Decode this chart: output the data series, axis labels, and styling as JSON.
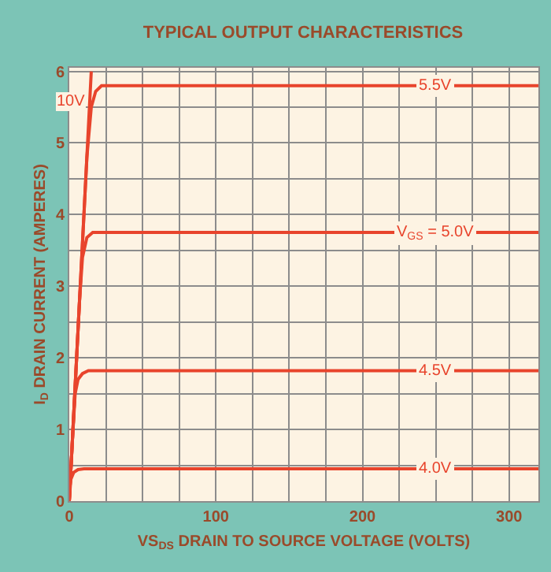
{
  "chart_data": {
    "type": "line",
    "title": "TYPICAL OUTPUT CHARACTERISTICS",
    "xlabel": "VS$_{DS}$ DRAIN TO SOURCE VOLTAGE (VOLTS)",
    "ylabel": "I$_{D}$ DRAIN CURRENT (AMPERES)",
    "xlim": [
      0,
      320
    ],
    "ylim": [
      0,
      6.05
    ],
    "xticks": [
      0,
      {
        "value": 25,
        "label": null
      },
      {
        "value": 50,
        "label": null
      },
      {
        "value": 75,
        "label": null
      },
      100,
      {
        "value": 125,
        "label": null
      },
      {
        "value": 150,
        "label": null
      },
      {
        "value": 175,
        "label": null
      },
      200,
      {
        "value": 225,
        "label": null
      },
      {
        "value": 250,
        "label": null
      },
      {
        "value": 275,
        "label": null
      },
      300
    ],
    "yticks": [
      0,
      {
        "value": 0.5,
        "label": null
      },
      1,
      {
        "value": 1.5,
        "label": null
      },
      2,
      {
        "value": 2.5,
        "label": null
      },
      3,
      {
        "value": 3.5,
        "label": null
      },
      4,
      {
        "value": 4.5,
        "label": null
      },
      5,
      {
        "value": 5.5,
        "label": null
      },
      6
    ],
    "grid": true,
    "legend": false,
    "marker": "none",
    "line_style": "solid",
    "series": [
      {
        "name": "10V",
        "color": "#e8442c",
        "x": [
          0,
          4,
          8,
          12,
          15
        ],
        "values": [
          0,
          1.6,
          3.2,
          4.8,
          6
        ]
      },
      {
        "name": "5.5V",
        "color": "#e8442c",
        "x": [
          0,
          4,
          8,
          12,
          15,
          18,
          22,
          320
        ],
        "values": [
          0,
          1.6,
          3.2,
          4.8,
          5.5,
          5.72,
          5.8,
          5.8
        ]
      },
      {
        "name": "V$_{GS}$ = 5.0V",
        "color": "#e8442c",
        "x": [
          0,
          4,
          7,
          9,
          12,
          16,
          320
        ],
        "values": [
          0,
          1.6,
          2.8,
          3.4,
          3.68,
          3.75,
          3.75
        ]
      },
      {
        "name": "4.5V",
        "color": "#e8442c",
        "x": [
          0,
          2,
          4,
          6,
          9,
          13,
          320
        ],
        "values": [
          0,
          0.8,
          1.5,
          1.7,
          1.78,
          1.82,
          1.82
        ]
      },
      {
        "name": "4.0V",
        "color": "#e8442c",
        "x": [
          0,
          1,
          3,
          6,
          10,
          320
        ],
        "values": [
          0,
          0.3,
          0.4,
          0.44,
          0.45,
          0.45
        ]
      }
    ]
  }
}
